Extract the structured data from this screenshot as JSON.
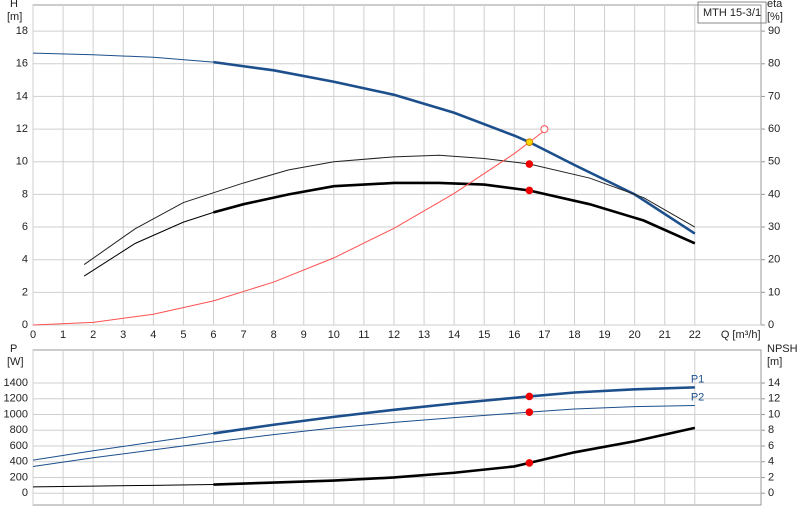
{
  "chart_data": [
    {
      "type": "line",
      "title": "MTH 15-3/1",
      "ylabel": "H",
      "yunit": "[m]",
      "y2label": "eta",
      "y2unit": "[%]",
      "xlabel": "Q [m³/h]",
      "xlim": [
        0,
        24.2
      ],
      "xticks": [
        0,
        1,
        2,
        3,
        4,
        5,
        6,
        7,
        8,
        9,
        10,
        11,
        12,
        13,
        14,
        15,
        16,
        17,
        18,
        19,
        20,
        21,
        22
      ],
      "x_tick_labels": true,
      "ylim": [
        0,
        19.6
      ],
      "yticks": [
        0,
        2,
        4,
        6,
        8,
        10,
        12,
        14,
        16,
        18
      ],
      "y2lim": [
        0,
        98
      ],
      "y2ticks": [
        0,
        10,
        20,
        30,
        40,
        50,
        60,
        70,
        80,
        90
      ],
      "grid": true,
      "series": [
        {
          "color": "#1c4f8c",
          "bold_from": 6,
          "axis": "y",
          "x": [
            0,
            2,
            4,
            6,
            8,
            10,
            12,
            14,
            16,
            16.5,
            18,
            20,
            22
          ],
          "values": [
            16.65,
            16.55,
            16.4,
            16.1,
            15.6,
            14.9,
            14.1,
            13.0,
            11.6,
            11.2,
            9.8,
            8.0,
            5.6
          ]
        },
        {
          "color": "#222222",
          "bold_from": 99,
          "axis": "y2",
          "x": [
            1.7,
            3.4,
            5,
            7,
            8.5,
            10,
            12,
            13.5,
            15,
            16.5,
            18.5,
            20.3,
            22
          ],
          "values": [
            18.5,
            29.5,
            37.5,
            43.5,
            47.5,
            50,
            51.5,
            52,
            51,
            49.3,
            45,
            39,
            30
          ]
        },
        {
          "color": "#000000",
          "bold_from": 6,
          "axis": "y2",
          "x": [
            1.7,
            3.4,
            5,
            6,
            7,
            8.5,
            10,
            12,
            13.5,
            15,
            16.5,
            18.5,
            20.3,
            22
          ],
          "values": [
            15,
            25,
            31.5,
            34.5,
            37,
            40,
            42.5,
            43.5,
            43.5,
            43,
            41.2,
            37,
            32,
            25
          ]
        },
        {
          "color": "#ff5050",
          "bold_from": 99,
          "axis": "y",
          "x": [
            0,
            2,
            4,
            6,
            8,
            10,
            12,
            14,
            16,
            16.5,
            17
          ],
          "values": [
            0,
            0.16,
            0.66,
            1.48,
            2.63,
            4.11,
            5.92,
            8.06,
            10.5,
            11.2,
            11.9
          ]
        }
      ],
      "markers": [
        {
          "x": 16.5,
          "y": 11.2,
          "axis": "y",
          "color": "#ffd700",
          "open": false
        },
        {
          "x": 16.5,
          "y": 49.3,
          "axis": "y2",
          "color": "#ee0000",
          "open": false
        },
        {
          "x": 16.5,
          "y": 41.2,
          "axis": "y2",
          "color": "#ee0000",
          "open": false
        },
        {
          "x": 17,
          "y": 12,
          "axis": "y",
          "color": "#ff5050",
          "open": true
        }
      ]
    },
    {
      "type": "line",
      "ylabel": "P",
      "yunit": "[W]",
      "y2label": "NPSH",
      "y2unit": "[m]",
      "xlim": [
        0,
        24.2
      ],
      "xticks": [
        0,
        1,
        2,
        3,
        4,
        5,
        6,
        7,
        8,
        9,
        10,
        11,
        12,
        13,
        14,
        15,
        16,
        17,
        18,
        19,
        20,
        21,
        22
      ],
      "x_tick_labels": false,
      "ylim": [
        -150,
        1820
      ],
      "yticks": [
        0,
        200,
        400,
        600,
        800,
        1000,
        1200,
        1400
      ],
      "y2lim": [
        -1.5,
        18.2
      ],
      "y2ticks": [
        0,
        2,
        4,
        6,
        8,
        10,
        12,
        14
      ],
      "grid": true,
      "series": [
        {
          "name": "P1",
          "color": "#1c4f8c",
          "bold_from": 6,
          "axis": "y",
          "x": [
            0,
            2,
            4,
            6,
            8,
            10,
            12,
            14,
            16.5,
            18,
            20,
            22
          ],
          "values": [
            420,
            540,
            650,
            760,
            870,
            970,
            1060,
            1140,
            1230,
            1280,
            1320,
            1345
          ]
        },
        {
          "name": "P2",
          "color": "#1c4f8c",
          "bold_from": 99,
          "axis": "y",
          "x": [
            0,
            2,
            4,
            6,
            8,
            10,
            12,
            14,
            16.5,
            18,
            20,
            22
          ],
          "values": [
            340,
            450,
            550,
            650,
            745,
            830,
            900,
            960,
            1030,
            1070,
            1100,
            1115
          ]
        },
        {
          "color": "#000000",
          "bold_from": 6,
          "axis": "y2",
          "x": [
            0,
            2,
            4,
            6,
            8,
            10,
            12,
            14,
            16,
            16.5,
            18,
            20,
            22
          ],
          "values": [
            0.8,
            0.9,
            1.0,
            1.1,
            1.35,
            1.6,
            2.0,
            2.6,
            3.4,
            3.85,
            5.2,
            6.6,
            8.3
          ]
        }
      ],
      "markers": [
        {
          "x": 16.5,
          "y": 1230,
          "axis": "y",
          "color": "#ee0000",
          "open": false
        },
        {
          "x": 16.5,
          "y": 1030,
          "axis": "y",
          "color": "#ee0000",
          "open": false
        },
        {
          "x": 16.5,
          "y": 3.85,
          "axis": "y2",
          "color": "#ee0000",
          "open": false
        }
      ]
    }
  ]
}
